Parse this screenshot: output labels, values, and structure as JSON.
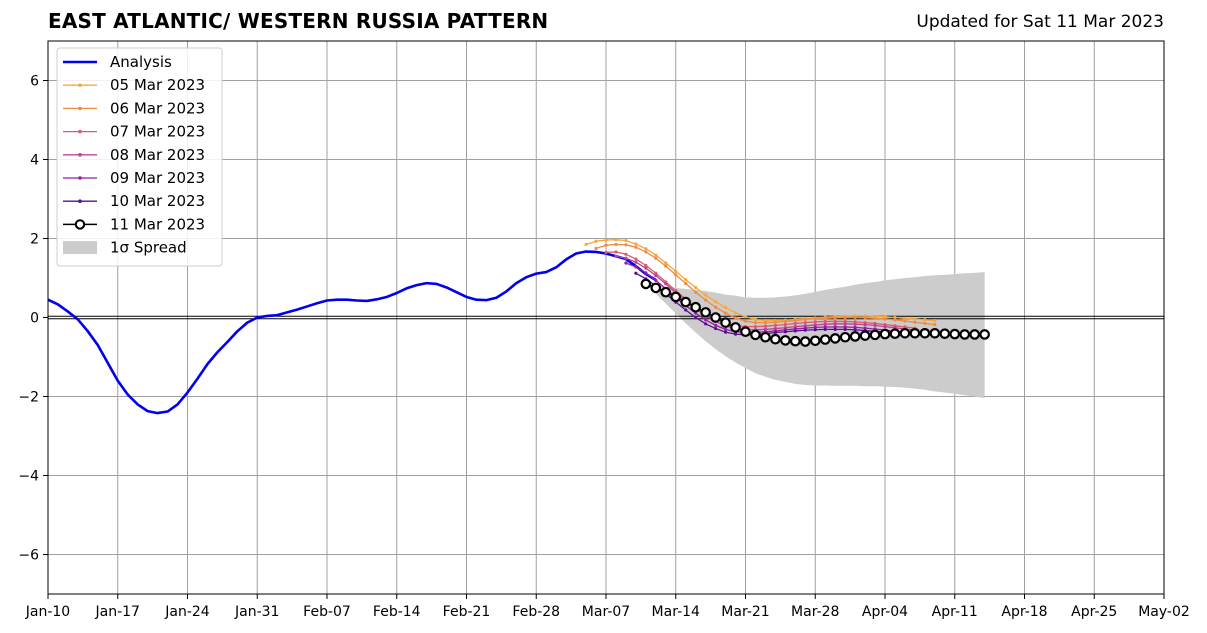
{
  "chart_data": {
    "type": "line",
    "title": "EAST ATLANTIC/ WESTERN RUSSIA PATTERN",
    "subtitle": "Updated for Sat 11 Mar 2023",
    "xlabel": "",
    "ylabel": "",
    "x_start": "2023-01-10",
    "x_end": "2023-05-02",
    "xticks": [
      "Jan-10",
      "Jan-17",
      "Jan-24",
      "Jan-31",
      "Feb-07",
      "Feb-14",
      "Feb-21",
      "Feb-28",
      "Mar-07",
      "Mar-14",
      "Mar-21",
      "Mar-28",
      "Apr-04",
      "Apr-11",
      "Apr-18",
      "Apr-25",
      "May-02"
    ],
    "ylim": [
      -7,
      7
    ],
    "yticks": [
      6,
      4,
      2,
      0,
      -2,
      -4,
      -6
    ],
    "ytick_labels": [
      "6",
      "4",
      "2",
      "0",
      "−2",
      "−4",
      "−6"
    ],
    "grid": true,
    "zero_line": true,
    "legend_position": "top-left",
    "legend": [
      "Analysis",
      "05 Mar 2023",
      "06 Mar 2023",
      "07 Mar 2023",
      "08 Mar 2023",
      "09 Mar 2023",
      "10 Mar 2023",
      "11 Mar 2023",
      "1σ Spread"
    ],
    "analysis": {
      "name": "Analysis",
      "color": "#0000ee",
      "start": "2023-01-10",
      "values": [
        0.45,
        0.33,
        0.15,
        -0.05,
        -0.35,
        -0.7,
        -1.15,
        -1.6,
        -1.95,
        -2.2,
        -2.37,
        -2.42,
        -2.38,
        -2.2,
        -1.9,
        -1.55,
        -1.18,
        -0.88,
        -0.62,
        -0.35,
        -0.13,
        0.0,
        0.04,
        0.06,
        0.13,
        0.2,
        0.28,
        0.36,
        0.43,
        0.45,
        0.45,
        0.43,
        0.42,
        0.46,
        0.52,
        0.62,
        0.74,
        0.82,
        0.87,
        0.85,
        0.76,
        0.64,
        0.52,
        0.45,
        0.44,
        0.5,
        0.66,
        0.87,
        1.02,
        1.11,
        1.15,
        1.27,
        1.47,
        1.62,
        1.67,
        1.66,
        1.62,
        1.55,
        1.48,
        1.3,
        1.1,
        0.95
      ]
    },
    "forecasts": [
      {
        "name": "05 Mar 2023",
        "color": "#f4a93a",
        "start": "2023-03-05",
        "values": [
          1.85,
          1.93,
          1.96,
          1.97,
          1.95,
          1.86,
          1.74,
          1.58,
          1.38,
          1.17,
          0.96,
          0.76,
          0.57,
          0.4,
          0.25,
          0.12,
          0.02,
          -0.05,
          -0.08,
          -0.08,
          -0.07,
          -0.05,
          -0.03,
          -0.01,
          0.01,
          0.02,
          0.03,
          0.04,
          0.04,
          0.03,
          0.02,
          0.0,
          -0.02,
          -0.04,
          -0.06,
          -0.08
        ]
      },
      {
        "name": "06 Mar 2023",
        "color": "#ee8a4a",
        "start": "2023-03-06",
        "values": [
          1.75,
          1.83,
          1.85,
          1.84,
          1.78,
          1.66,
          1.5,
          1.3,
          1.08,
          0.86,
          0.64,
          0.44,
          0.26,
          0.11,
          -0.01,
          -0.09,
          -0.13,
          -0.13,
          -0.12,
          -0.1,
          -0.08,
          -0.05,
          -0.03,
          -0.02,
          -0.01,
          0.0,
          0.0,
          -0.01,
          -0.02,
          -0.04,
          -0.06,
          -0.09,
          -0.12,
          -0.15,
          -0.18
        ]
      },
      {
        "name": "07 Mar 2023",
        "color": "#de5a6e",
        "start": "2023-03-07",
        "values": [
          1.65,
          1.66,
          1.6,
          1.48,
          1.32,
          1.12,
          0.9,
          0.68,
          0.47,
          0.27,
          0.1,
          -0.04,
          -0.14,
          -0.2,
          -0.23,
          -0.23,
          -0.22,
          -0.2,
          -0.18,
          -0.15,
          -0.13,
          -0.11,
          -0.1,
          -0.1,
          -0.1,
          -0.11,
          -0.13,
          -0.15,
          -0.18,
          -0.21,
          -0.24,
          -0.27
        ]
      },
      {
        "name": "08 Mar 2023",
        "color": "#bf4195",
        "start": "2023-03-08",
        "values": [
          1.55,
          1.5,
          1.4,
          1.25,
          1.06,
          0.85,
          0.63,
          0.42,
          0.22,
          0.05,
          -0.1,
          -0.21,
          -0.28,
          -0.31,
          -0.31,
          -0.3,
          -0.28,
          -0.26,
          -0.23,
          -0.21,
          -0.19,
          -0.17,
          -0.16,
          -0.16,
          -0.17,
          -0.18,
          -0.2,
          -0.23,
          -0.26,
          -0.29,
          -0.32
        ]
      },
      {
        "name": "09 Mar 2023",
        "color": "#961fa0",
        "start": "2023-03-09",
        "values": [
          1.38,
          1.28,
          1.13,
          0.94,
          0.73,
          0.51,
          0.3,
          0.11,
          -0.06,
          -0.2,
          -0.3,
          -0.36,
          -0.38,
          -0.38,
          -0.36,
          -0.34,
          -0.31,
          -0.29,
          -0.27,
          -0.25,
          -0.24,
          -0.24,
          -0.24,
          -0.25,
          -0.27,
          -0.29,
          -0.32,
          -0.35,
          -0.38,
          -0.41
        ]
      },
      {
        "name": "10 Mar 2023",
        "color": "#5b0f8f",
        "start": "2023-03-10",
        "values": [
          1.12,
          0.98,
          0.8,
          0.6,
          0.39,
          0.19,
          0.0,
          -0.16,
          -0.28,
          -0.37,
          -0.42,
          -0.44,
          -0.43,
          -0.41,
          -0.38,
          -0.36,
          -0.34,
          -0.32,
          -0.31,
          -0.3,
          -0.3,
          -0.3,
          -0.31,
          -0.33,
          -0.35,
          -0.37,
          -0.39,
          -0.41,
          -0.43
        ]
      },
      {
        "name": "11 Mar 2023",
        "color": "#000000",
        "start": "2023-03-11",
        "marker": "open-circle",
        "values": [
          0.85,
          0.75,
          0.64,
          0.52,
          0.39,
          0.26,
          0.13,
          0.0,
          -0.13,
          -0.25,
          -0.36,
          -0.44,
          -0.5,
          -0.55,
          -0.58,
          -0.6,
          -0.61,
          -0.59,
          -0.56,
          -0.53,
          -0.5,
          -0.48,
          -0.46,
          -0.44,
          -0.42,
          -0.41,
          -0.4,
          -0.4,
          -0.4,
          -0.4,
          -0.41,
          -0.42,
          -0.43,
          -0.43,
          -0.43
        ]
      }
    ],
    "spread": {
      "name": "1σ Spread",
      "color": "#cccccc",
      "start": "2023-03-11",
      "upper": [
        0.85,
        0.82,
        0.78,
        0.75,
        0.72,
        0.7,
        0.67,
        0.63,
        0.58,
        0.55,
        0.51,
        0.5,
        0.5,
        0.51,
        0.53,
        0.56,
        0.6,
        0.65,
        0.7,
        0.74,
        0.78,
        0.83,
        0.87,
        0.9,
        0.94,
        0.97,
        1.0,
        1.02,
        1.05,
        1.07,
        1.08,
        1.1,
        1.12,
        1.13,
        1.15
      ],
      "lower": [
        0.85,
        0.6,
        0.35,
        0.1,
        -0.15,
        -0.38,
        -0.6,
        -0.8,
        -0.98,
        -1.14,
        -1.28,
        -1.41,
        -1.5,
        -1.58,
        -1.63,
        -1.68,
        -1.71,
        -1.72,
        -1.72,
        -1.73,
        -1.73,
        -1.73,
        -1.74,
        -1.74,
        -1.75,
        -1.76,
        -1.78,
        -1.8,
        -1.83,
        -1.87,
        -1.9,
        -1.93,
        -1.97,
        -2.0,
        -2.04
      ]
    }
  }
}
